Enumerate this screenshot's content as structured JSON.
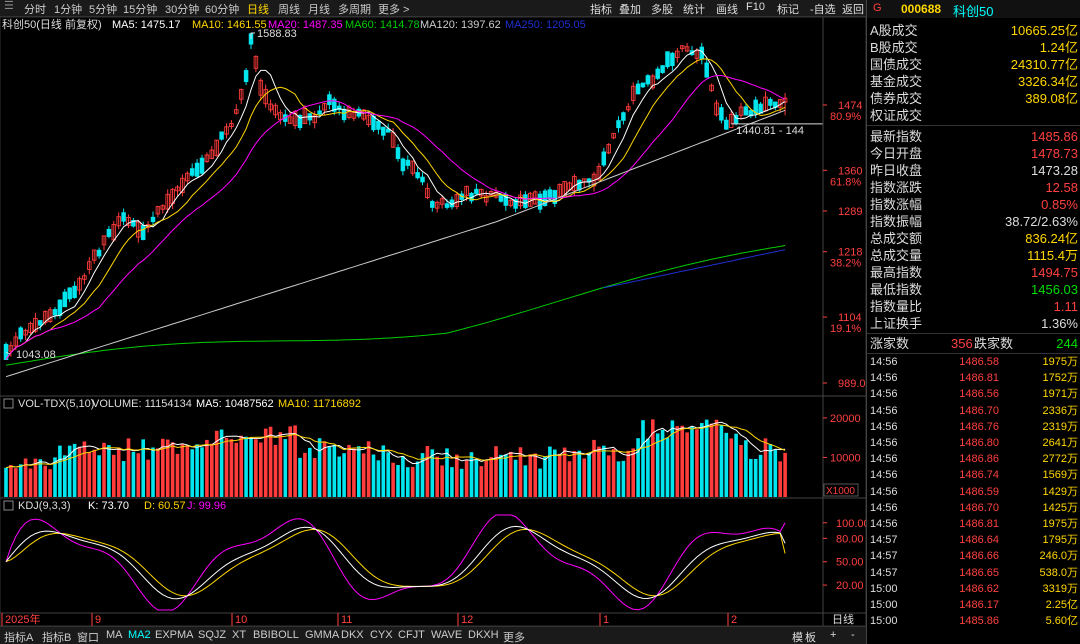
{
  "periods": [
    "分时",
    "1分钟",
    "5分钟",
    "15分钟",
    "30分钟",
    "60分钟",
    "日线",
    "周线",
    "月线",
    "多周期",
    "更多 >"
  ],
  "tools": [
    "指标",
    "叠加",
    "多股",
    "统计",
    "画线",
    "F10",
    "标记",
    "-自选",
    "返回"
  ],
  "main_legend": {
    "name": "科创50(日线 前复权)",
    "ma5": "MA5: 1475.17",
    "ma10": "MA10: 1461.55",
    "ma20": "MA20: 1487.35",
    "ma60": "MA60: 1414.78",
    "ma120": "MA120: 1397.62",
    "ma250": "MA250: 1205.05"
  },
  "main_axis": [
    {
      "y": 1474,
      "v": "1474",
      "pct": "80.9%"
    },
    {
      "y": 1360,
      "v": "1360",
      "pct": "61.8%"
    },
    {
      "y": 1289,
      "v": "1289",
      "pct": ""
    },
    {
      "y": 1218,
      "v": "1218",
      "pct": "38.2%"
    },
    {
      "y": 1104,
      "v": "1104",
      "pct": "19.1%"
    },
    {
      "y": 989,
      "v": "989.0",
      "pct": ""
    }
  ],
  "annotations": {
    "high": "1588.83",
    "low": "1043.08",
    "recent_low": "1440.81 - 144"
  },
  "vol_legend": {
    "name": "VOL-TDX(5,10)",
    "volume": "VOLUME: 11154134",
    "ma5": "MA5: 10487562",
    "ma10": "MA10: 11716892"
  },
  "vol_axis": [
    {
      "y": 20000,
      "v": "20000"
    },
    {
      "y": 10000,
      "v": "10000"
    }
  ],
  "vol_unit": "X1000",
  "kdj_legend": {
    "name": "KDJ(9,3,3)",
    "k": "K: 73.70",
    "d": "D: 60.57",
    "j": "J: 99.96"
  },
  "kdj_axis": [
    {
      "y": 100,
      "v": "100.00"
    },
    {
      "y": 80,
      "v": "80.00"
    },
    {
      "y": 50,
      "v": "50.00"
    },
    {
      "y": 20,
      "v": "20.00"
    }
  ],
  "dates": [
    "2025年",
    "9",
    "10",
    "11",
    "12",
    "1",
    "2"
  ],
  "date_right": "日线",
  "bottom": [
    "指标A",
    "指标B",
    "窗口",
    "MA",
    "MA2",
    "EXPMA",
    "SQJZ",
    "XT",
    "BBIBOLL",
    "GMMA",
    "DKX",
    "CYX",
    "CFJT",
    "WAVE",
    "DKXH",
    "更多"
  ],
  "bottom_right": [
    "模",
    "板",
    "+",
    "-"
  ],
  "colors": {
    "up": "#ff3b3b",
    "down": "#00e5ee",
    "ma5": "#ffffff",
    "ma10": "#ffd700",
    "ma20": "#ff00ff",
    "ma60": "#00cc00",
    "ma250": "#1e2fd0",
    "k": "#ffffff",
    "d": "#ffd700",
    "j": "#ff00ff"
  },
  "panel": {
    "code": "000688",
    "name": "科创50",
    "market": [
      {
        "l": "A股成交",
        "v": "10665.25亿"
      },
      {
        "l": "B股成交",
        "v": "1.24亿"
      },
      {
        "l": "国债成交",
        "v": "24310.77亿"
      },
      {
        "l": "基金成交",
        "v": "3326.34亿"
      },
      {
        "l": "债券成交",
        "v": "389.08亿"
      },
      {
        "l": "权证成交",
        "v": ""
      }
    ],
    "index": [
      {
        "l": "最新指数",
        "v": "1485.86",
        "c": "#ff4040"
      },
      {
        "l": "今日开盘",
        "v": "1478.73",
        "c": "#ff4040"
      },
      {
        "l": "昨日收盘",
        "v": "1473.28",
        "c": "#dddddd"
      },
      {
        "l": "指数涨跌",
        "v": "12.58",
        "c": "#ff4040"
      },
      {
        "l": "指数涨幅",
        "v": "0.85%",
        "c": "#ff4040"
      },
      {
        "l": "指数振幅",
        "v": "38.72/2.63%",
        "c": "#dddddd"
      },
      {
        "l": "总成交额",
        "v": "836.24亿",
        "c": "#ffd700"
      },
      {
        "l": "总成交量",
        "v": "1115.4万",
        "c": "#ffd700"
      },
      {
        "l": "最高指数",
        "v": "1494.75",
        "c": "#ff4040"
      },
      {
        "l": "最低指数",
        "v": "1456.03",
        "c": "#00dd00"
      },
      {
        "l": "指数量比",
        "v": "1.11",
        "c": "#ff4040"
      },
      {
        "l": "上证换手",
        "v": "1.36%",
        "c": "#dddddd"
      }
    ],
    "updown": {
      "up_label": "涨家数",
      "up": "356",
      "down_label": "跌家数",
      "down": "244"
    },
    "ticks": [
      [
        "14:56",
        "1486.58",
        "1975万"
      ],
      [
        "14:56",
        "1486.81",
        "1752万"
      ],
      [
        "14:56",
        "1486.56",
        "1971万"
      ],
      [
        "14:56",
        "1486.70",
        "2336万"
      ],
      [
        "14:56",
        "1486.76",
        "2319万"
      ],
      [
        "14:56",
        "1486.80",
        "2641万"
      ],
      [
        "14:56",
        "1486.86",
        "2772万"
      ],
      [
        "14:56",
        "1486.74",
        "1569万"
      ],
      [
        "14:56",
        "1486.59",
        "1429万"
      ],
      [
        "14:56",
        "1486.70",
        "1425万"
      ],
      [
        "14:56",
        "1486.81",
        "1975万"
      ],
      [
        "14:57",
        "1486.64",
        "1795万"
      ],
      [
        "14:57",
        "1486.66",
        "246.0万"
      ],
      [
        "14:57",
        "1486.65",
        "538.0万"
      ],
      [
        "15:00",
        "1486.62",
        "3319万"
      ],
      [
        "15:00",
        "1486.17",
        "2.25亿"
      ],
      [
        "15:00",
        "1485.86",
        "5.60亿"
      ]
    ]
  }
}
